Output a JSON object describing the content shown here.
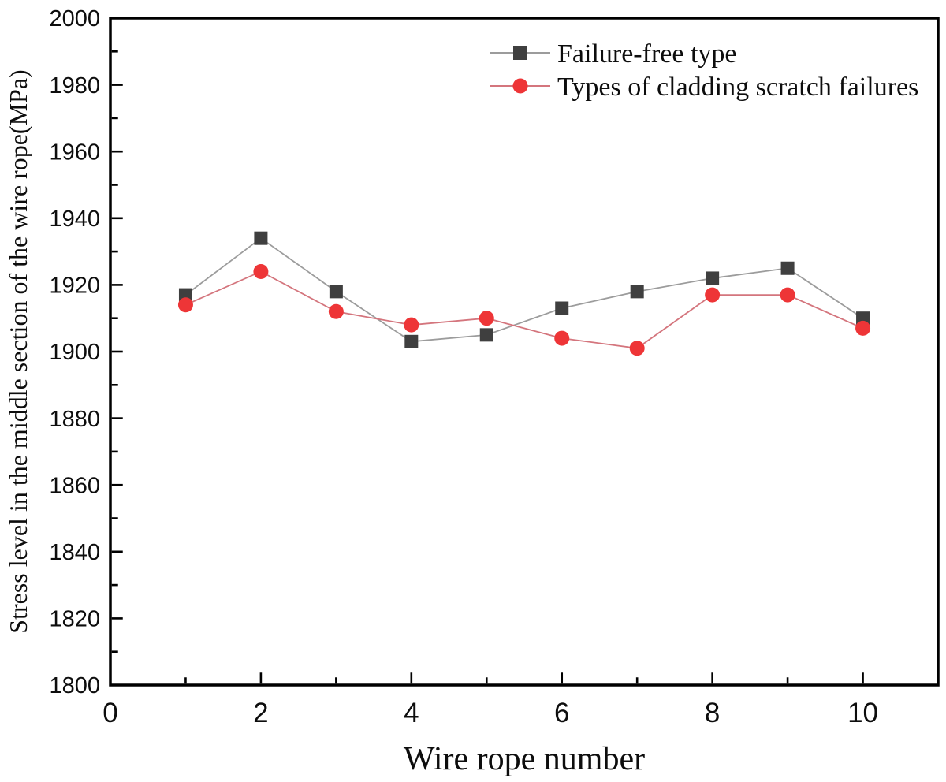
{
  "chart_data": {
    "type": "line",
    "title": "",
    "xlabel": "Wire rope number",
    "ylabel": "Stress level in the middle section of the wire rope(MPa)",
    "x": [
      1,
      2,
      3,
      4,
      5,
      6,
      7,
      8,
      9,
      10
    ],
    "series": [
      {
        "name": "Failure-free type",
        "marker": "square",
        "marker_color": "#3f3f3f",
        "line_color": "#9c9c9c",
        "values": [
          1917,
          1934,
          1918,
          1903,
          1905,
          1913,
          1918,
          1922,
          1925,
          1910
        ]
      },
      {
        "name": "Types of cladding scratch failures",
        "marker": "circle",
        "marker_color": "#ee3537",
        "line_color": "#d4757d",
        "values": [
          1914,
          1924,
          1912,
          1908,
          1910,
          1904,
          1901,
          1917,
          1917,
          1907
        ]
      }
    ],
    "xlim": [
      0,
      11
    ],
    "ylim": [
      1800,
      2000
    ],
    "x_tick_labels": [
      0,
      2,
      4,
      6,
      8,
      10
    ],
    "x_minor_step": 1,
    "x_major_step": 2,
    "y_tick_labels": [
      1800,
      1820,
      1840,
      1860,
      1880,
      1900,
      1920,
      1940,
      1960,
      1980,
      2000
    ],
    "y_major_step": 20,
    "y_minor_step": 10,
    "grid": false,
    "legend_position": "top-right-inside",
    "legend_border": false,
    "axis_color": "#000000",
    "background_color": "#ffffff"
  }
}
